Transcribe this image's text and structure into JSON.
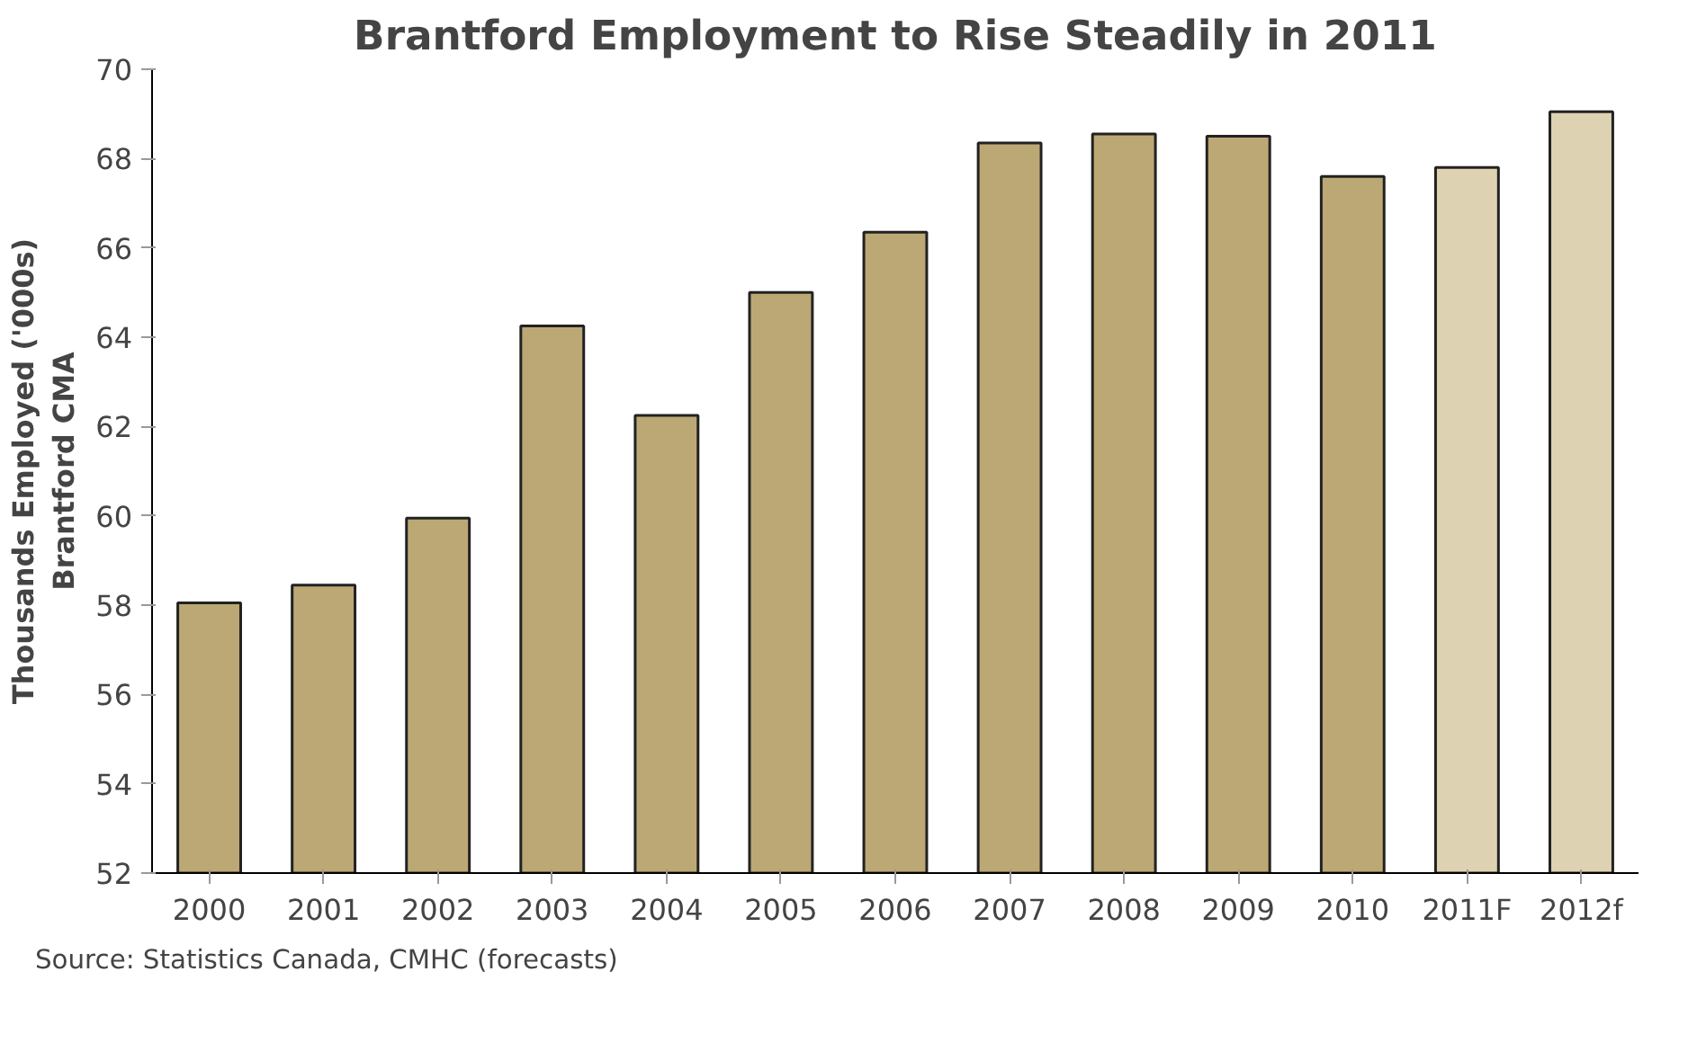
{
  "chart_data": {
    "type": "bar",
    "title": "Brantford Employment to Rise Steadily in 2011",
    "ylabel": "Thousands Employed ('000s)\nBrantford CMA",
    "categories": [
      "2000",
      "2001",
      "2002",
      "2003",
      "2004",
      "2005",
      "2006",
      "2007",
      "2008",
      "2009",
      "2010",
      "2011F",
      "2012f"
    ],
    "values": [
      58.05,
      58.45,
      59.95,
      64.25,
      62.25,
      65.0,
      66.35,
      68.35,
      68.55,
      68.5,
      67.6,
      67.8,
      69.05
    ],
    "colors": [
      "#bca874",
      "#bca874",
      "#bca874",
      "#bca874",
      "#bca874",
      "#bca874",
      "#bca874",
      "#bca874",
      "#bca874",
      "#bca874",
      "#bca874",
      "#ddd3b2",
      "#ddd3b2"
    ],
    "ylim": [
      52,
      70
    ],
    "yticks": [
      52,
      54,
      56,
      58,
      60,
      62,
      64,
      66,
      68,
      70
    ],
    "grid": false,
    "annotations": [
      "Source: Statistics Canada, CMHC (forecasts)"
    ]
  }
}
